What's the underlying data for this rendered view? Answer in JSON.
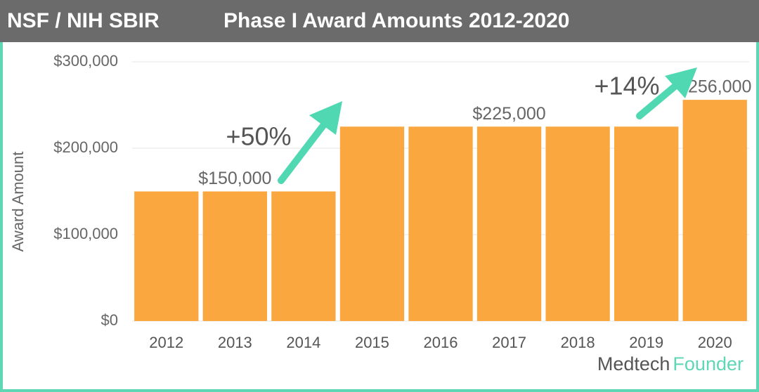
{
  "chart_data": {
    "type": "bar",
    "title": "NSF / NIH SBIR",
    "subtitle": "Phase I Award Amounts 2012-2020",
    "y_label": "Award Amount",
    "categories": [
      "2012",
      "2013",
      "2014",
      "2015",
      "2016",
      "2017",
      "2018",
      "2019",
      "2020"
    ],
    "values": [
      150000,
      150000,
      150000,
      225000,
      225000,
      225000,
      225000,
      225000,
      256000
    ],
    "value_labels": [
      null,
      "$150,000",
      null,
      null,
      null,
      "$225,000",
      null,
      null,
      "$256,000"
    ],
    "color": "#f9a73e",
    "ylim": [
      0,
      300000
    ],
    "yticks": [
      {
        "value": 0,
        "label": "$0"
      },
      {
        "value": 100000,
        "label": "$100,000"
      },
      {
        "value": 200000,
        "label": "$200,000"
      },
      {
        "value": 300000,
        "label": "$300,000"
      }
    ],
    "grid": true,
    "annotations": [
      "+50%",
      "+14%"
    ],
    "logo": [
      "Medtech",
      "Founder"
    ]
  }
}
